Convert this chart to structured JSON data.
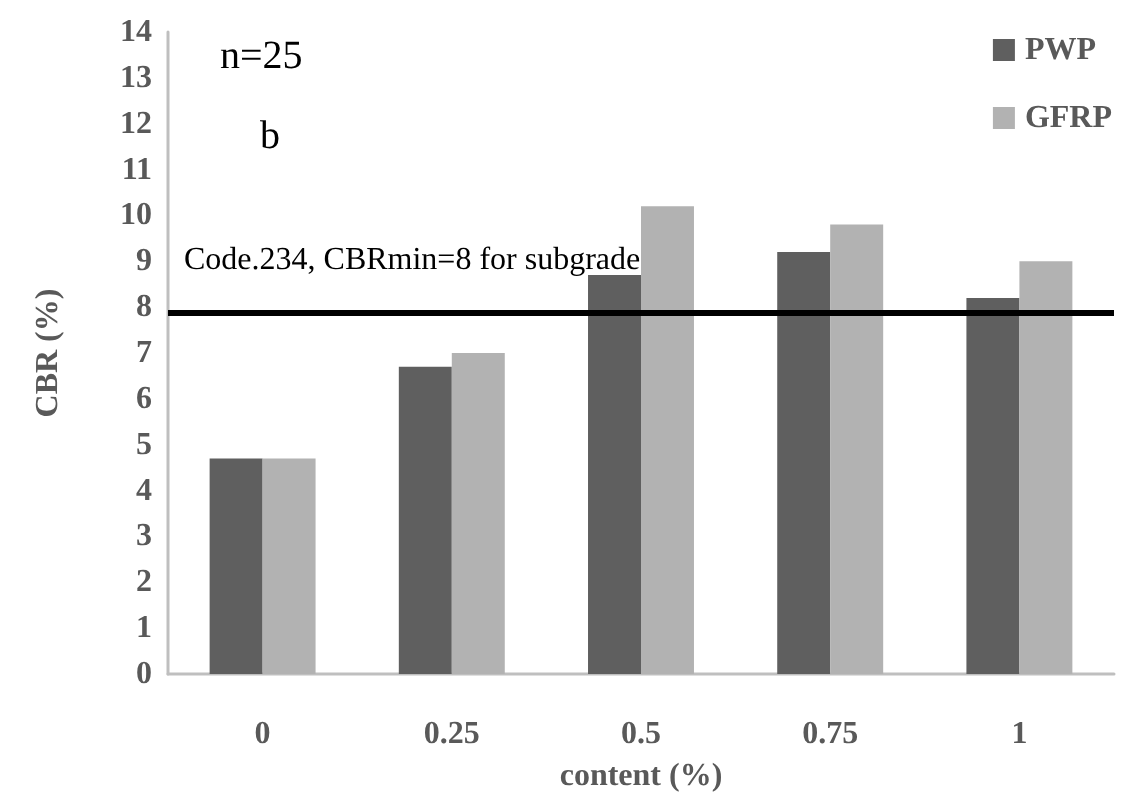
{
  "chart_data": {
    "type": "bar",
    "xlabel": "content (%)",
    "ylabel": "CBR (%)",
    "categories": [
      "0",
      "0.25",
      "0.5",
      "0.75",
      "1"
    ],
    "series": [
      {
        "name": "PWP",
        "color": "#5f5f5f",
        "values": [
          4.7,
          6.7,
          8.7,
          9.2,
          8.2
        ]
      },
      {
        "name": "GFRP",
        "color": "#b2b2b2",
        "values": [
          4.7,
          7.0,
          10.2,
          9.8,
          9.0
        ]
      }
    ],
    "ylim": [
      0,
      14
    ],
    "yticks": [
      0,
      1,
      2,
      3,
      4,
      5,
      6,
      7,
      8,
      9,
      10,
      11,
      12,
      13,
      14
    ],
    "grid": false,
    "legend": "top right",
    "ref_lines": [
      {
        "axis": "y",
        "value": 7.9,
        "label": "Code.234, CBRmin=8 for subgrade",
        "color": "#000000"
      }
    ],
    "annotations": [
      "n=25",
      "b"
    ]
  }
}
